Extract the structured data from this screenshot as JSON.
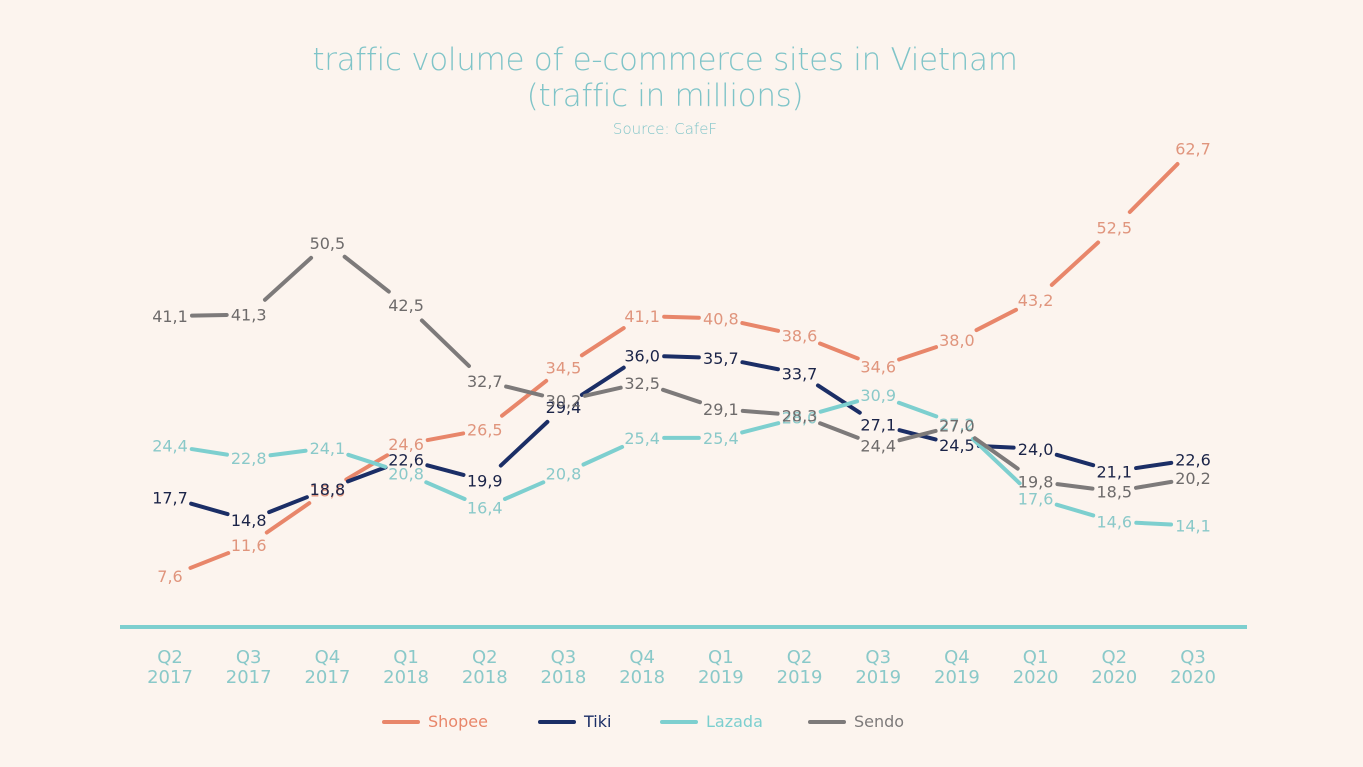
{
  "header": {
    "title_line1": "traffic volume of e-commerce sites in Vietnam",
    "title_line2": "(traffic in millions)",
    "source": "Source: CafeF"
  },
  "legend": [
    {
      "name": "Shopee",
      "color": "#e8866a"
    },
    {
      "name": "Tiki",
      "color": "#1b2e66"
    },
    {
      "name": "Lazada",
      "color": "#7dcfcf"
    },
    {
      "name": "Sendo",
      "color": "#7d7a7a"
    }
  ],
  "chart_data": {
    "type": "line",
    "title": "traffic volume of e-commerce sites in Vietnam (traffic in millions)",
    "subtitle": "Source: CafeF",
    "xlabel": "",
    "ylabel": "traffic in millions",
    "grid": false,
    "legend_position": "bottom",
    "decimal_separator": ",",
    "categories": [
      "Q2 2017",
      "Q3 2017",
      "Q4 2017",
      "Q1 2018",
      "Q2 2018",
      "Q3 2018",
      "Q4 2018",
      "Q1 2019",
      "Q2 2019",
      "Q3 2019",
      "Q4 2019",
      "Q1 2020",
      "Q2 2020",
      "Q3 2020"
    ],
    "category_lines": [
      [
        "Q2",
        "2017"
      ],
      [
        "Q3",
        "2017"
      ],
      [
        "Q4",
        "2017"
      ],
      [
        "Q1",
        "2018"
      ],
      [
        "Q2",
        "2018"
      ],
      [
        "Q3",
        "2018"
      ],
      [
        "Q4",
        "2018"
      ],
      [
        "Q1",
        "2019"
      ],
      [
        "Q2",
        "2019"
      ],
      [
        "Q3",
        "2019"
      ],
      [
        "Q4",
        "2019"
      ],
      [
        "Q1",
        "2020"
      ],
      [
        "Q2",
        "2020"
      ],
      [
        "Q3",
        "2020"
      ]
    ],
    "series": [
      {
        "name": "Shopee",
        "color": "#e8866a",
        "label_color": "#e0957d",
        "values": [
          7.6,
          11.6,
          18.6,
          24.6,
          26.5,
          34.5,
          41.1,
          40.8,
          38.6,
          34.6,
          38.0,
          43.2,
          52.5,
          62.7
        ],
        "labels": [
          "7,6",
          "11,6",
          "18,6",
          "24,6",
          "26,5",
          "34,5",
          "41,1",
          "40,8",
          "38,6",
          "34,6",
          "38,0",
          "43,2",
          "52,5",
          "62,7"
        ]
      },
      {
        "name": "Tiki",
        "color": "#1b2e66",
        "label_color": "#1b2448",
        "values": [
          17.7,
          14.8,
          18.8,
          22.6,
          19.9,
          29.4,
          36.0,
          35.7,
          33.7,
          27.1,
          24.5,
          24.0,
          21.1,
          22.6
        ],
        "labels": [
          "17,7",
          "14,8",
          "18,8",
          "22,6",
          "19,9",
          "29,4",
          "36,0",
          "35,7",
          "33,7",
          "27,1",
          "24,5",
          "24,0",
          "21,1",
          "22,6"
        ]
      },
      {
        "name": "Lazada",
        "color": "#7dcfcf",
        "label_color": "#8ac9c9",
        "values": [
          24.4,
          22.8,
          24.1,
          20.8,
          16.4,
          20.8,
          25.4,
          25.4,
          28.0,
          30.9,
          27.2,
          17.6,
          14.6,
          14.1
        ],
        "labels": [
          "24,4",
          "22,8",
          "24,1",
          "20,8",
          "16,4",
          "20,8",
          "25,4",
          "25,4",
          "28,0",
          "30,9",
          "27,2",
          "17,6",
          "14,6",
          "14,1"
        ]
      },
      {
        "name": "Sendo",
        "color": "#7d7a7a",
        "label_color": "#6e6b6b",
        "values": [
          41.1,
          41.3,
          50.5,
          42.5,
          32.7,
          30.2,
          32.5,
          29.1,
          28.3,
          24.4,
          27.0,
          19.8,
          18.5,
          20.2
        ],
        "labels": [
          "41,1",
          "41,3",
          "50,5",
          "42,5",
          "32,7",
          "30,2",
          "32,5",
          "29,1",
          "28,3",
          "24,4",
          "27,0",
          "19,8",
          "18,5",
          "20,2"
        ]
      }
    ],
    "axis": {
      "color": "#7dcfcf",
      "tick_label_color": "#8ac9c9"
    },
    "ylim": [
      0,
      65
    ]
  }
}
